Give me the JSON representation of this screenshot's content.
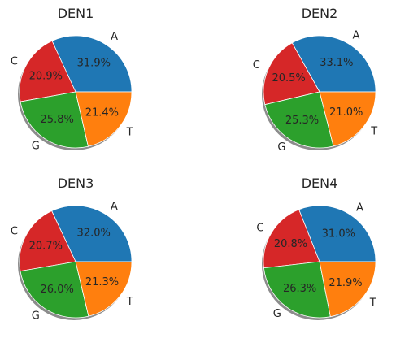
{
  "chart_data": [
    {
      "type": "pie",
      "title": "DEN1",
      "categories": [
        "A",
        "C",
        "G",
        "T"
      ],
      "values": [
        31.9,
        20.9,
        25.8,
        21.4
      ],
      "value_labels": [
        "31.9%",
        "20.9%",
        "25.8%",
        "21.4%"
      ]
    },
    {
      "type": "pie",
      "title": "DEN2",
      "categories": [
        "A",
        "C",
        "G",
        "T"
      ],
      "values": [
        33.1,
        20.5,
        25.3,
        21.0
      ],
      "value_labels": [
        "33.1%",
        "20.5%",
        "25.3%",
        "21.0%"
      ]
    },
    {
      "type": "pie",
      "title": "DEN3",
      "categories": [
        "A",
        "C",
        "G",
        "T"
      ],
      "values": [
        32.0,
        20.7,
        26.0,
        21.3
      ],
      "value_labels": [
        "32.0%",
        "20.7%",
        "26.0%",
        "21.3%"
      ]
    },
    {
      "type": "pie",
      "title": "DEN4",
      "categories": [
        "A",
        "C",
        "G",
        "T"
      ],
      "values": [
        31.0,
        20.8,
        26.3,
        21.9
      ],
      "value_labels": [
        "31.0%",
        "20.8%",
        "26.3%",
        "21.9%"
      ]
    }
  ],
  "colors": {
    "A": "#1f77b4",
    "C": "#d62728",
    "G": "#2ca02c",
    "T": "#ff7f0e",
    "shadow": "#8c8c8c",
    "edge": "#ffffff"
  },
  "shadow": true,
  "start_angle_deg": 0,
  "direction": "counterclockwise"
}
